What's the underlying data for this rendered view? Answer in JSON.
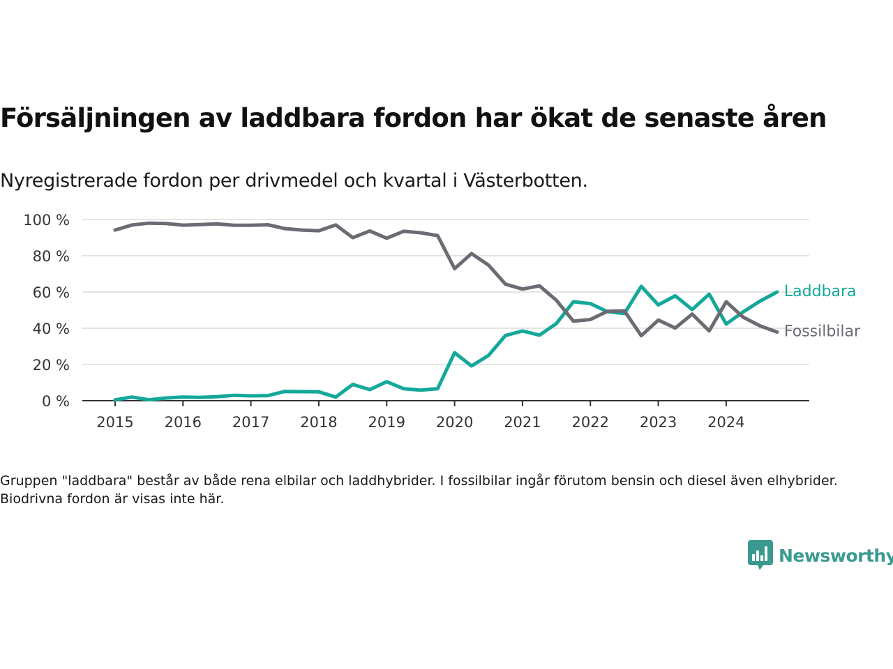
{
  "title": "Försäljningen av laddbara fordon har ökat de senaste åren",
  "subtitle": "Nyregistrerade fordon per drivmedel och kvartal i Västerbotten.",
  "footnote": "Gruppen \"laddbara\" består av både rena elbilar och laddhybrider. I fossilbilar ingår förutom bensin och diesel även elhybrider. Biodrivna fordon är visas inte här.",
  "brand": {
    "name": "Newsworthy",
    "icon": "newsworthy-bar-chart-icon",
    "color": "#3a9a8f"
  },
  "chart_data": {
    "type": "line",
    "x_unit": "quarter",
    "x": [
      "2015 Q1",
      "2015 Q2",
      "2015 Q3",
      "2015 Q4",
      "2016 Q1",
      "2016 Q2",
      "2016 Q3",
      "2016 Q4",
      "2017 Q1",
      "2017 Q2",
      "2017 Q3",
      "2017 Q4",
      "2018 Q1",
      "2018 Q2",
      "2018 Q3",
      "2018 Q4",
      "2019 Q1",
      "2019 Q2",
      "2019 Q3",
      "2019 Q4",
      "2020 Q1",
      "2020 Q2",
      "2020 Q3",
      "2020 Q4",
      "2021 Q1",
      "2021 Q2",
      "2021 Q3",
      "2021 Q4",
      "2022 Q1",
      "2022 Q2",
      "2022 Q3",
      "2022 Q4",
      "2023 Q1",
      "2023 Q2",
      "2023 Q3",
      "2023 Q4",
      "2024 Q1",
      "2024 Q2",
      "2024 Q3",
      "2024 Q4"
    ],
    "x_tick_labels": [
      "2015",
      "2016",
      "2017",
      "2018",
      "2019",
      "2020",
      "2021",
      "2022",
      "2023",
      "2024"
    ],
    "y_ticks": [
      0,
      20,
      40,
      60,
      80,
      100
    ],
    "y_tick_labels": [
      "0 %",
      "20 %",
      "40 %",
      "60 %",
      "80 %",
      "100 %"
    ],
    "ylim": [
      0,
      100
    ],
    "grid": true,
    "legend": "end-of-line labels",
    "series": [
      {
        "name": "Laddbara",
        "color": "#13a89a",
        "values": [
          0.5,
          2,
          0.5,
          1.5,
          2,
          1.8,
          2.2,
          3,
          2.7,
          2.8,
          5.1,
          5,
          4.9,
          2,
          9,
          6.1,
          10.5,
          6.6,
          5.8,
          6.6,
          26.5,
          19.2,
          25,
          36,
          38.5,
          36.2,
          42.6,
          54.6,
          53.6,
          49.2,
          48.1,
          63.1,
          52.9,
          57.9,
          50.3,
          58.8,
          42.3,
          49,
          55,
          60
        ]
      },
      {
        "name": "Fossilbilar",
        "color": "#6b6b73",
        "values": [
          94.2,
          97,
          98,
          97.8,
          96.9,
          97.2,
          97.6,
          96.8,
          96.8,
          97.1,
          95,
          94.2,
          93.8,
          97,
          90,
          93.7,
          89.7,
          93.5,
          92.7,
          91.1,
          72.9,
          81.2,
          74.8,
          64.3,
          61.6,
          63.4,
          55.4,
          43.9,
          44.8,
          49.3,
          49.6,
          35.9,
          44.5,
          40.1,
          47.8,
          38.5,
          54.6,
          46.1,
          41.3,
          37.9
        ]
      }
    ]
  }
}
